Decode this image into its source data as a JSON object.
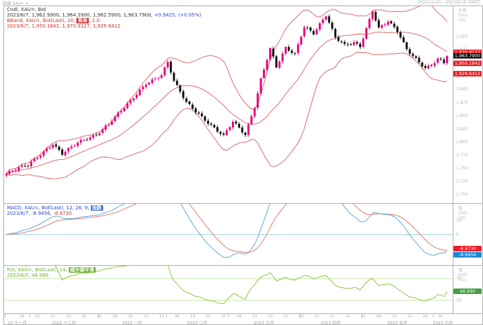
{
  "window": {
    "top_left": "隐藏 XAU= ▾",
    "top_right": "2022/11/21 - 2023/6/16 (GMT)"
  },
  "main_pane": {
    "legend": {
      "line1": "Cndl, XAU=, Bid",
      "line2_ohlc": "2023/6/7, 1,962.9900, 1,964.3900, 1,962.5900, 1,963.7900, ",
      "line2_change": "+0.9425, (+0.05%)",
      "line3_prefix": "BBand, XAU=, Bid(Last), 20, ",
      "line3_chip": "简单",
      "line3_suffix": ", 2.0",
      "line4": "2023/6/7, 1,950.1842, 1,970.9127, 1,929.6412"
    },
    "axis_unit": [
      "价格",
      "USD",
      "Ozs"
    ],
    "axis_labels": [
      "2,000",
      "1,975",
      "1,950",
      "1,925",
      "1,900",
      "1,875",
      "1,850",
      "1,825",
      "1,800",
      "1,775",
      "1,750",
      "1,725",
      "1,700"
    ],
    "badges": [
      {
        "value": "1,970.9127",
        "price": 1970.9127,
        "color": "red",
        "name": "upper-band-badge"
      },
      {
        "value": "1,963.7900",
        "price": 1963.79,
        "color": "black",
        "name": "last-price-badge"
      },
      {
        "value": "1,950.1842",
        "price": 1950.1842,
        "color": "red",
        "name": "mid-band-badge"
      },
      {
        "value": "1,929.6412",
        "price": 1929.6412,
        "color": "red",
        "name": "lower-band-badge"
      }
    ]
  },
  "macd_pane": {
    "legend": {
      "line1_prefix": "MACD, XAU=, Bid(Last), 12, 26, 9, ",
      "line1_chip": "指数",
      "line2_blue": "2023/6/7, -8.9456, ",
      "line2_red": "-8.8730"
    },
    "axis_unit": [
      "值",
      "USD",
      "Ozs"
    ],
    "axis_labels": [
      {
        "text": "10",
        "v": 10
      },
      {
        "text": "0",
        "v": 0
      },
      {
        "text": "-10",
        "v": -10
      }
    ],
    "badges": [
      {
        "value": "-8.8730",
        "color": "red",
        "name": "macd-signal-badge"
      },
      {
        "value": "-8.9456",
        "color": "blue",
        "name": "macd-value-badge"
      }
    ]
  },
  "rsi_pane": {
    "legend": {
      "line1_prefix": "RSI, XAU=, Bid(Last), 14, ",
      "line1_chip": "威尔德平滑",
      "line2": "2023/6/7, 46.990"
    },
    "axis_unit": [
      "值",
      "USD",
      "Ozs"
    ],
    "axis_labels": [
      {
        "text": "70",
        "v": 70
      },
      {
        "text": "30",
        "v": 30
      }
    ],
    "badges": [
      {
        "value": "46.990",
        "v": 46.99,
        "color": "green",
        "name": "rsi-value-badge"
      }
    ]
  },
  "time_axis": {
    "day_ticks": [
      [
        "28",
        5
      ],
      [
        "05",
        10
      ],
      [
        "12",
        15
      ],
      [
        "19",
        20
      ],
      [
        "26",
        25
      ],
      [
        "02",
        30
      ],
      [
        "09",
        35
      ],
      [
        "16",
        40
      ],
      [
        "23",
        45
      ],
      [
        "30",
        50
      ],
      [
        "06",
        55
      ],
      [
        "13",
        60
      ],
      [
        "20",
        65
      ],
      [
        "27",
        70
      ],
      [
        "06",
        75
      ],
      [
        "13",
        80
      ],
      [
        "20",
        85
      ],
      [
        "27",
        90
      ],
      [
        "03",
        95
      ],
      [
        "10",
        100
      ],
      [
        "17",
        105
      ],
      [
        "24",
        110
      ],
      [
        "01",
        115
      ],
      [
        "08",
        120
      ],
      [
        "15",
        125
      ],
      [
        "22",
        130
      ],
      [
        "29",
        135
      ],
      [
        "05",
        140
      ]
    ],
    "months": [
      {
        "label": "22 十一月",
        "from": 0,
        "to": 8
      },
      {
        "label": "2022 十二月",
        "from": 8,
        "to": 30
      },
      {
        "label": "2023 一月",
        "from": 30,
        "to": 52
      },
      {
        "label": "2023 二月",
        "from": 52,
        "to": 72
      },
      {
        "label": "2023 三月",
        "from": 72,
        "to": 95
      },
      {
        "label": "2023 四月",
        "from": 95,
        "to": 115
      },
      {
        "label": "2023 五月",
        "from": 115,
        "to": 138
      },
      {
        "label": "2023 六月",
        "from": 138,
        "to": 143
      }
    ]
  },
  "chart_data": {
    "type": "candlestick",
    "instrument": "XAU=",
    "interval": "daily",
    "title": "Cndl, XAU=, Bid",
    "x_range": [
      "2022-11-21",
      "2023-06-07"
    ],
    "bar_count": 143,
    "ylim": [
      1690,
      2060
    ],
    "last_ohlc": {
      "date": "2023/6/7",
      "open": 1962.99,
      "high": 1964.39,
      "low": 1962.59,
      "close": 1963.79,
      "change": 0.9425,
      "change_pct": "+0.05%"
    },
    "close_keyframes": [
      [
        0,
        1739
      ],
      [
        4,
        1750
      ],
      [
        7,
        1756
      ],
      [
        12,
        1782
      ],
      [
        15,
        1797
      ],
      [
        18,
        1777
      ],
      [
        23,
        1798
      ],
      [
        29,
        1815
      ],
      [
        33,
        1835
      ],
      [
        40,
        1877
      ],
      [
        45,
        1912
      ],
      [
        50,
        1928
      ],
      [
        52,
        1952
      ],
      [
        54,
        1915
      ],
      [
        58,
        1875
      ],
      [
        62,
        1854
      ],
      [
        66,
        1832
      ],
      [
        70,
        1811
      ],
      [
        73,
        1838
      ],
      [
        77,
        1814
      ],
      [
        80,
        1868
      ],
      [
        82,
        1920
      ],
      [
        85,
        1978
      ],
      [
        87,
        1942
      ],
      [
        90,
        1978
      ],
      [
        93,
        1967
      ],
      [
        96,
        2021
      ],
      [
        99,
        2008
      ],
      [
        103,
        2041
      ],
      [
        106,
        1998
      ],
      [
        109,
        1984
      ],
      [
        112,
        1990
      ],
      [
        114,
        1983
      ],
      [
        116,
        2017
      ],
      [
        118,
        2050
      ],
      [
        120,
        2016
      ],
      [
        123,
        2029
      ],
      [
        126,
        2011
      ],
      [
        129,
        1977
      ],
      [
        132,
        1959
      ],
      [
        135,
        1941
      ],
      [
        137,
        1946
      ],
      [
        139,
        1957
      ],
      [
        141,
        1950
      ],
      [
        142,
        1963.79
      ]
    ],
    "bollinger": {
      "period": 20,
      "ma_type": "简单",
      "mult": 2.0,
      "last_mid": 1950.1842,
      "last_upper": 1970.9127,
      "last_lower": 1929.6412
    },
    "macd": {
      "fast": 12,
      "slow": 26,
      "signal": 9,
      "ma_type": "指数",
      "last_macd": -8.9456,
      "last_signal": -8.873,
      "ylim": [
        -20,
        20
      ]
    },
    "rsi": {
      "period": 14,
      "smoothing": "威尔德平滑",
      "last": 46.99,
      "levels": [
        70,
        30
      ],
      "ylim": [
        10,
        90
      ]
    },
    "colors": {
      "up": "#e6007e",
      "down": "#111111",
      "bband": "#dd5b5b",
      "macd_line": "#5fa8dc",
      "signal_line": "#e07a6a",
      "zero_line": "#a8d4ee",
      "rsi_line": "#8dc63f",
      "rsi_levels": "#cde6b0",
      "badge_red": "#ed1c24",
      "badge_blue": "#1e88d2",
      "badge_green": "#43a047",
      "badge_black": "#111111",
      "frame": "#adadad"
    }
  }
}
